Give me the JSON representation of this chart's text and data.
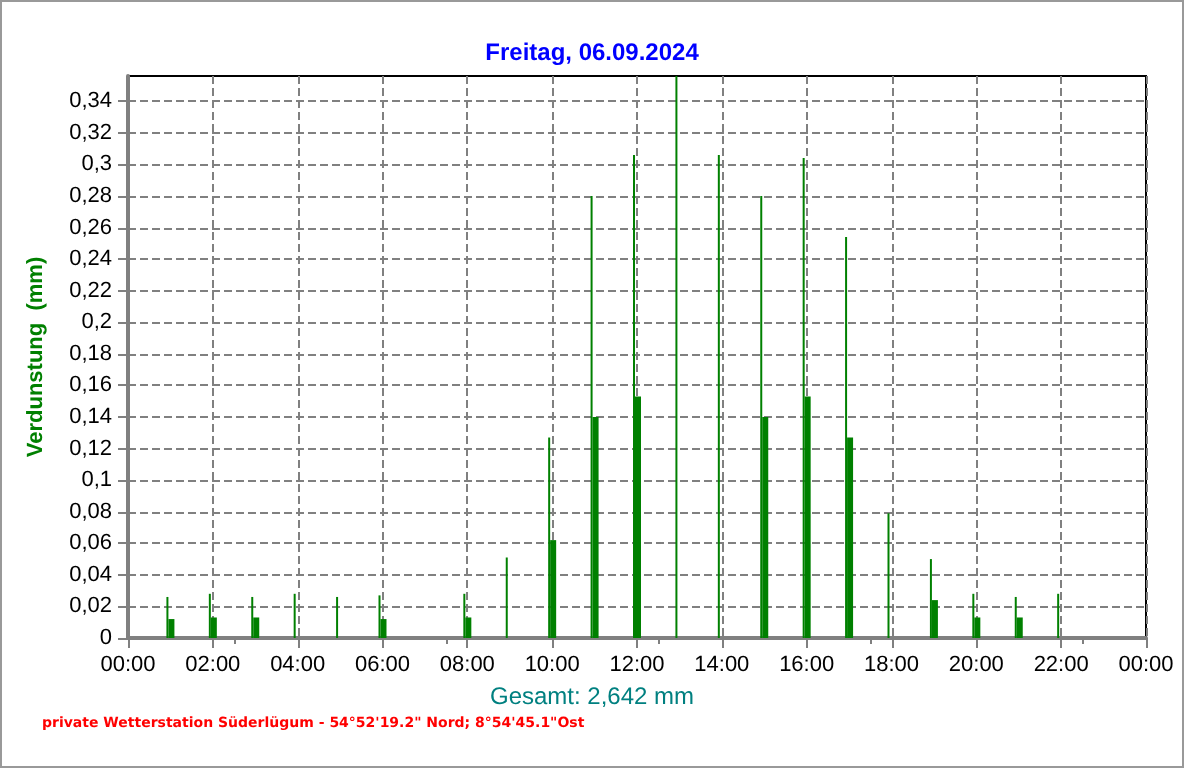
{
  "chart_data": {
    "type": "bar",
    "title": "Freitag, 06.09.2024",
    "ylabel": "Verdunstung  (mm)",
    "annotations": [
      "Gesamt: 2,642 mm",
      "private Wetterstation Süderlügum - 54°52'19.2\" Nord; 8°54'45.1\"Ost"
    ],
    "series": [
      {
        "color": "#008000",
        "x": [
          1,
          2,
          3,
          4,
          5,
          6,
          8,
          9,
          10,
          11,
          12,
          13,
          14,
          15,
          16,
          17,
          18,
          19,
          20,
          21,
          22
        ],
        "values": [
          0.026,
          0.028,
          0.026,
          0.028,
          0.026,
          0.027,
          0.028,
          0.051,
          0.127,
          0.28,
          0.306,
          0.356,
          0.306,
          0.28,
          0.304,
          0.254,
          0.079,
          0.05,
          0.028,
          0.026,
          0.028
        ]
      },
      {
        "color": "#008000",
        "x": [
          1,
          2,
          3,
          6,
          8,
          10,
          11,
          12,
          15,
          16,
          17,
          19,
          20,
          21
        ],
        "values": [
          0.012,
          0.013,
          0.013,
          0.012,
          0.013,
          0.062,
          0.14,
          0.153,
          0.14,
          0.153,
          0.127,
          0.024,
          0.013,
          0.013
        ]
      }
    ],
    "xlim": [
      0,
      24
    ],
    "xticks": [
      {
        "value": 0,
        "label": "00:00"
      },
      {
        "value": 2,
        "label": "02:00"
      },
      {
        "value": 4,
        "label": "04:00"
      },
      {
        "value": 6,
        "label": "06:00"
      },
      {
        "value": 8,
        "label": "08:00"
      },
      {
        "value": 10,
        "label": "10:00"
      },
      {
        "value": 12,
        "label": "12:00"
      },
      {
        "value": 14,
        "label": "14:00"
      },
      {
        "value": 16,
        "label": "16:00"
      },
      {
        "value": 18,
        "label": "18:00"
      },
      {
        "value": 20,
        "label": "20:00"
      },
      {
        "value": 22,
        "label": "22:00"
      },
      {
        "value": 24,
        "label": "00:00"
      }
    ],
    "ylim": [
      0,
      0.356
    ],
    "yticks": [
      {
        "value": 0,
        "label": "0"
      },
      {
        "value": 0.02,
        "label": "0,02"
      },
      {
        "value": 0.04,
        "label": "0,04"
      },
      {
        "value": 0.06,
        "label": "0,06"
      },
      {
        "value": 0.08,
        "label": "0,08"
      },
      {
        "value": 0.1,
        "label": "0,1"
      },
      {
        "value": 0.12,
        "label": "0,12"
      },
      {
        "value": 0.14,
        "label": "0,14"
      },
      {
        "value": 0.16,
        "label": "0,16"
      },
      {
        "value": 0.18,
        "label": "0,18"
      },
      {
        "value": 0.2,
        "label": "0,2"
      },
      {
        "value": 0.22,
        "label": "0,22"
      },
      {
        "value": 0.24,
        "label": "0,24"
      },
      {
        "value": 0.26,
        "label": "0,26"
      },
      {
        "value": 0.28,
        "label": "0,28"
      },
      {
        "value": 0.3,
        "label": "0,3"
      },
      {
        "value": 0.32,
        "label": "0,32"
      },
      {
        "value": 0.34,
        "label": "0,34"
      }
    ],
    "grid": true
  }
}
